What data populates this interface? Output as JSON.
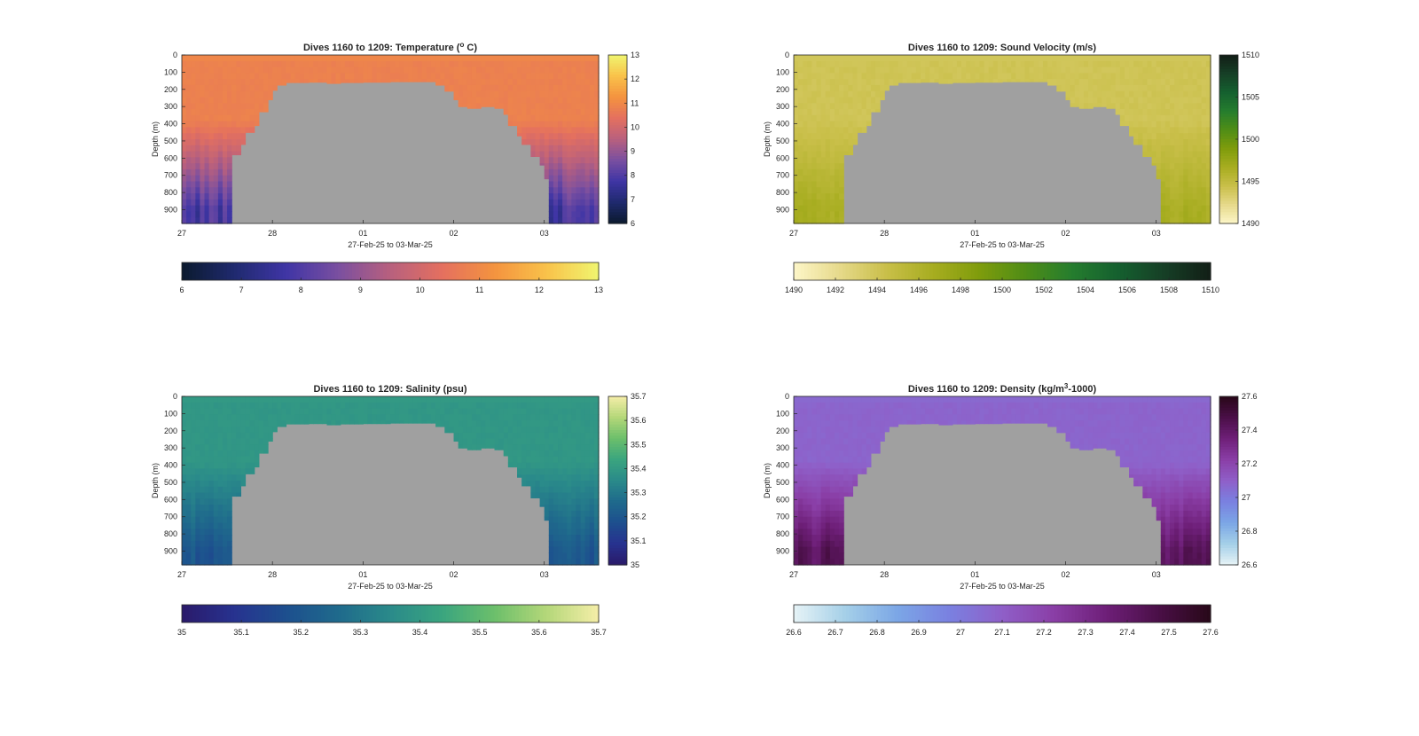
{
  "figure_label": "",
  "chart_data": [
    {
      "type": "heatmap",
      "title": "Dives 1160 to 1209: Temperature (",
      "title_sup": "o",
      "title_tail": " C)",
      "xlabel": "27-Feb-25 to 03-Mar-25",
      "ylabel": "Depth (m)",
      "xticks": [
        "27",
        "28",
        "01",
        "02",
        "03"
      ],
      "xlim": [
        0,
        4.6
      ],
      "yticks": [
        "0",
        "100",
        "200",
        "300",
        "400",
        "500",
        "600",
        "700",
        "800",
        "900"
      ],
      "ylim": [
        0,
        980
      ],
      "colorbar": {
        "min": 6,
        "max": 13,
        "ticks": [
          "13",
          "12",
          "11",
          "10",
          "9",
          "8",
          "7",
          "6"
        ]
      },
      "hcolorbar": {
        "ticks": [
          "6",
          "7",
          "8",
          "9",
          "10",
          "11",
          "12",
          "13"
        ]
      },
      "colormap": [
        "#0b1a2e",
        "#1f2a6e",
        "#3f35a5",
        "#7a4fa0",
        "#b8607e",
        "#e4705f",
        "#f4933f",
        "#f9c24a",
        "#f0f56f"
      ],
      "no_data_color": "#a0a0a0",
      "surface_value": 10.8,
      "deep_value": 7.8
    },
    {
      "type": "heatmap",
      "title": "Dives 1160 to 1209: Sound Velocity (m/s)",
      "title_sup": "",
      "title_tail": "",
      "xlabel": "27-Feb-25 to 03-Mar-25",
      "ylabel": "Depth (m)",
      "xticks": [
        "27",
        "28",
        "01",
        "02",
        "03"
      ],
      "xlim": [
        0,
        4.6
      ],
      "yticks": [
        "0",
        "100",
        "200",
        "300",
        "400",
        "500",
        "600",
        "700",
        "800",
        "900"
      ],
      "ylim": [
        0,
        980
      ],
      "colorbar": {
        "min": 1490,
        "max": 1510,
        "ticks": [
          "1510",
          "1505",
          "1500",
          "1495",
          "1490"
        ]
      },
      "hcolorbar": {
        "ticks": [
          "1490",
          "1492",
          "1494",
          "1496",
          "1498",
          "1500",
          "1502",
          "1504",
          "1506",
          "1508",
          "1510"
        ]
      },
      "colormap": [
        "#fdf6c8",
        "#e6d98a",
        "#c9bf49",
        "#a7ad20",
        "#7f9c0c",
        "#4f8d16",
        "#257d2e",
        "#15602f",
        "#163f26",
        "#121e16"
      ],
      "no_data_color": "#a0a0a0",
      "surface_value": 1494.0,
      "deep_value": 1496.5
    },
    {
      "type": "heatmap",
      "title": "Dives 1160 to 1209: Salinity (psu)",
      "title_sup": "",
      "title_tail": "",
      "xlabel": "27-Feb-25 to 03-Mar-25",
      "ylabel": "Depth (m)",
      "xticks": [
        "27",
        "28",
        "01",
        "02",
        "03"
      ],
      "xlim": [
        0,
        4.6
      ],
      "yticks": [
        "0",
        "100",
        "200",
        "300",
        "400",
        "500",
        "600",
        "700",
        "800",
        "900"
      ],
      "ylim": [
        0,
        980
      ],
      "colorbar": {
        "min": 35.0,
        "max": 35.7,
        "ticks": [
          "35.7",
          "35.6",
          "35.5",
          "35.4",
          "35.3",
          "35.2",
          "35.1",
          "35"
        ]
      },
      "hcolorbar": {
        "ticks": [
          "35",
          "35.1",
          "35.2",
          "35.3",
          "35.4",
          "35.5",
          "35.6",
          "35.7"
        ]
      },
      "colormap": [
        "#2a1a6a",
        "#27328f",
        "#1d4f8e",
        "#1f6a8c",
        "#2a8a8a",
        "#3aa57f",
        "#6cbf6b",
        "#b4d779",
        "#f5eea8"
      ],
      "no_data_color": "#a0a0a0",
      "surface_value": 35.39,
      "deep_value": 35.2
    },
    {
      "type": "heatmap",
      "title": "Dives 1160 to 1209: Density (kg/m",
      "title_sup": "3",
      "title_tail": "-1000)",
      "xlabel": "27-Feb-25 to 03-Mar-25",
      "ylabel": "Depth (m)",
      "xticks": [
        "27",
        "28",
        "01",
        "02",
        "03"
      ],
      "xlim": [
        0,
        4.6
      ],
      "yticks": [
        "0",
        "100",
        "200",
        "300",
        "400",
        "500",
        "600",
        "700",
        "800",
        "900"
      ],
      "ylim": [
        0,
        980
      ],
      "colorbar": {
        "min": 26.6,
        "max": 27.6,
        "ticks": [
          "27.6",
          "27.4",
          "27.2",
          "27",
          "26.8",
          "26.6"
        ]
      },
      "hcolorbar": {
        "ticks": [
          "26.6",
          "26.7",
          "26.8",
          "26.9",
          "27",
          "27.1",
          "27.2",
          "27.3",
          "27.4",
          "27.5",
          "27.6"
        ]
      },
      "colormap": [
        "#e6f3f6",
        "#a4cfe8",
        "#7ba6e6",
        "#7a80e0",
        "#8f5fc8",
        "#8a3ea6",
        "#6e1f78",
        "#4a0f47",
        "#280818"
      ],
      "no_data_color": "#a0a0a0",
      "surface_value": 27.08,
      "deep_value": 27.42
    }
  ]
}
